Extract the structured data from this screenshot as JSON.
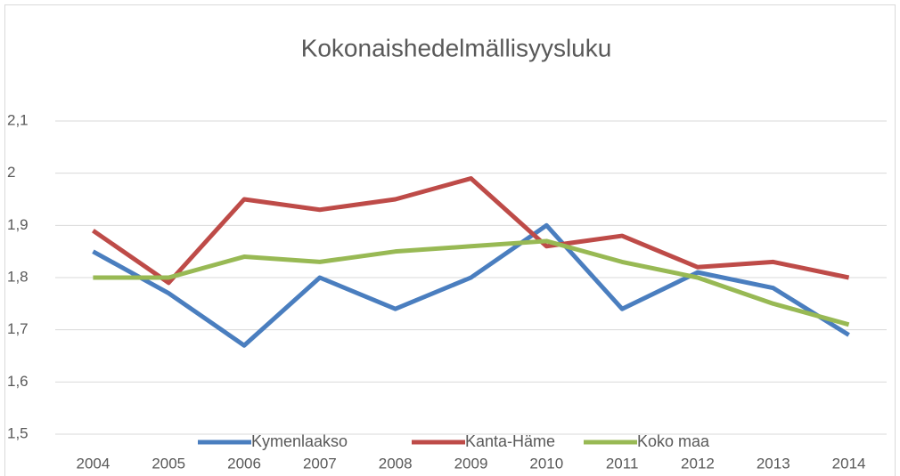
{
  "chart_data": {
    "type": "line",
    "title": "Kokonaishedelmällisyysluku",
    "categories": [
      "2004",
      "2005",
      "2006",
      "2007",
      "2008",
      "2009",
      "2010",
      "2011",
      "2012",
      "2013",
      "2014"
    ],
    "series": [
      {
        "name": "Kymenlaakso",
        "color": "#4a7ebf",
        "values": [
          1.85,
          1.77,
          1.67,
          1.8,
          1.74,
          1.8,
          1.9,
          1.74,
          1.81,
          1.78,
          1.69
        ]
      },
      {
        "name": "Kanta-Häme",
        "color": "#be4b48",
        "values": [
          1.89,
          1.79,
          1.95,
          1.93,
          1.95,
          1.99,
          1.86,
          1.88,
          1.82,
          1.83,
          1.8
        ]
      },
      {
        "name": "Koko maa",
        "color": "#98b954",
        "values": [
          1.8,
          1.8,
          1.84,
          1.83,
          1.85,
          1.86,
          1.87,
          1.83,
          1.8,
          1.75,
          1.71
        ]
      }
    ],
    "ylim": [
      1.5,
      2.1
    ],
    "yticks": [
      {
        "value": 1.5,
        "label": "1,5"
      },
      {
        "value": 1.6,
        "label": "1,6"
      },
      {
        "value": 1.7,
        "label": "1,7"
      },
      {
        "value": 1.8,
        "label": "1,8"
      },
      {
        "value": 1.9,
        "label": "1,9"
      },
      2,
      {
        "value": 2.1,
        "label": "2,1"
      }
    ],
    "grid": true,
    "legend": "bottom"
  }
}
